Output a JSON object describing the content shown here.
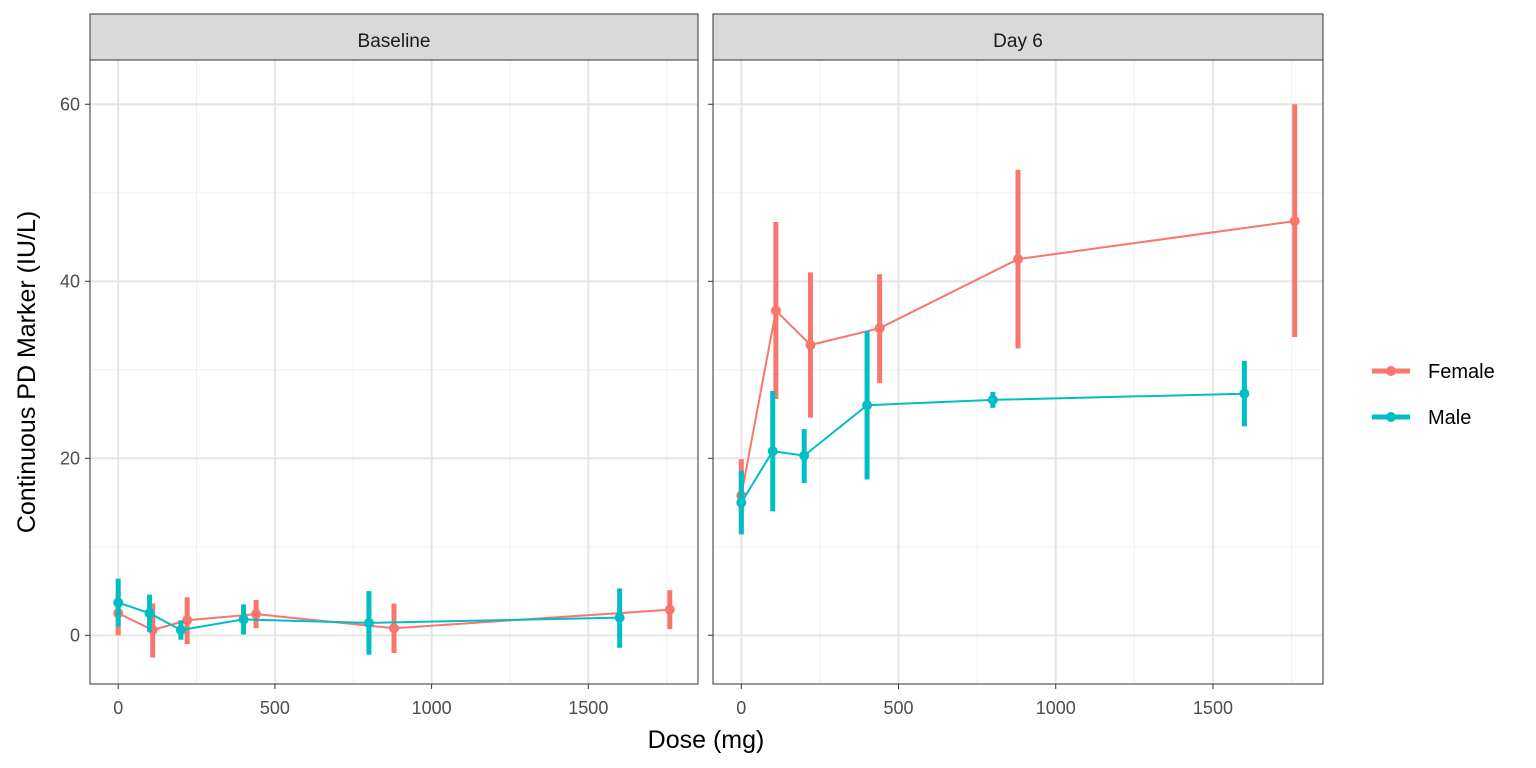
{
  "chart_data": {
    "type": "line",
    "xlabel": "Dose (mg)",
    "ylabel": "Continuous PD Marker (IU/L)",
    "xlim": [
      -90,
      1850
    ],
    "ylim": [
      -5.5,
      65
    ],
    "x_ticks": [
      0,
      500,
      1000,
      1500
    ],
    "y_ticks": [
      0,
      20,
      40,
      60
    ],
    "grid": true,
    "legend_position": "right",
    "legend": [
      {
        "name": "Female",
        "color": "#F8766D"
      },
      {
        "name": "Male",
        "color": "#00BFC4"
      }
    ],
    "panels": [
      {
        "label": "Baseline",
        "series": [
          {
            "name": "Female",
            "color": "#F8766D",
            "points": [
              {
                "x": 0,
                "y": 2.5,
                "lo": 0.0,
                "hi": 5.0
              },
              {
                "x": 110,
                "y": 0.6,
                "lo": -2.5,
                "hi": 3.6
              },
              {
                "x": 220,
                "y": 1.7,
                "lo": -1.0,
                "hi": 4.3
              },
              {
                "x": 440,
                "y": 2.4,
                "lo": 0.8,
                "hi": 4.0
              },
              {
                "x": 880,
                "y": 0.8,
                "lo": -2.0,
                "hi": 3.6
              },
              {
                "x": 1760,
                "y": 2.9,
                "lo": 0.7,
                "hi": 5.1
              }
            ]
          },
          {
            "name": "Male",
            "color": "#00BFC4",
            "points": [
              {
                "x": 0,
                "y": 3.7,
                "lo": 1.0,
                "hi": 6.4
              },
              {
                "x": 100,
                "y": 2.5,
                "lo": 0.4,
                "hi": 4.6
              },
              {
                "x": 200,
                "y": 0.6,
                "lo": -0.5,
                "hi": 1.7
              },
              {
                "x": 400,
                "y": 1.8,
                "lo": 0.1,
                "hi": 3.5
              },
              {
                "x": 800,
                "y": 1.4,
                "lo": -2.2,
                "hi": 5.0
              },
              {
                "x": 1600,
                "y": 2.0,
                "lo": -1.4,
                "hi": 5.3
              }
            ]
          }
        ]
      },
      {
        "label": "Day 6",
        "series": [
          {
            "name": "Female",
            "color": "#F8766D",
            "points": [
              {
                "x": 0,
                "y": 15.8,
                "lo": 11.6,
                "hi": 19.9
              },
              {
                "x": 110,
                "y": 36.7,
                "lo": 26.7,
                "hi": 46.7
              },
              {
                "x": 220,
                "y": 32.8,
                "lo": 24.6,
                "hi": 41.0
              },
              {
                "x": 440,
                "y": 34.7,
                "lo": 28.5,
                "hi": 40.8
              },
              {
                "x": 880,
                "y": 42.5,
                "lo": 32.4,
                "hi": 52.6
              },
              {
                "x": 1760,
                "y": 46.8,
                "lo": 33.7,
                "hi": 60.0
              }
            ]
          },
          {
            "name": "Male",
            "color": "#00BFC4",
            "points": [
              {
                "x": 0,
                "y": 15.0,
                "lo": 11.4,
                "hi": 18.6
              },
              {
                "x": 100,
                "y": 20.8,
                "lo": 14.0,
                "hi": 27.6
              },
              {
                "x": 200,
                "y": 20.3,
                "lo": 17.2,
                "hi": 23.3
              },
              {
                "x": 400,
                "y": 26.0,
                "lo": 17.6,
                "hi": 34.4
              },
              {
                "x": 800,
                "y": 26.6,
                "lo": 25.7,
                "hi": 27.5
              },
              {
                "x": 1600,
                "y": 27.3,
                "lo": 23.6,
                "hi": 31.0
              }
            ]
          }
        ]
      }
    ]
  }
}
